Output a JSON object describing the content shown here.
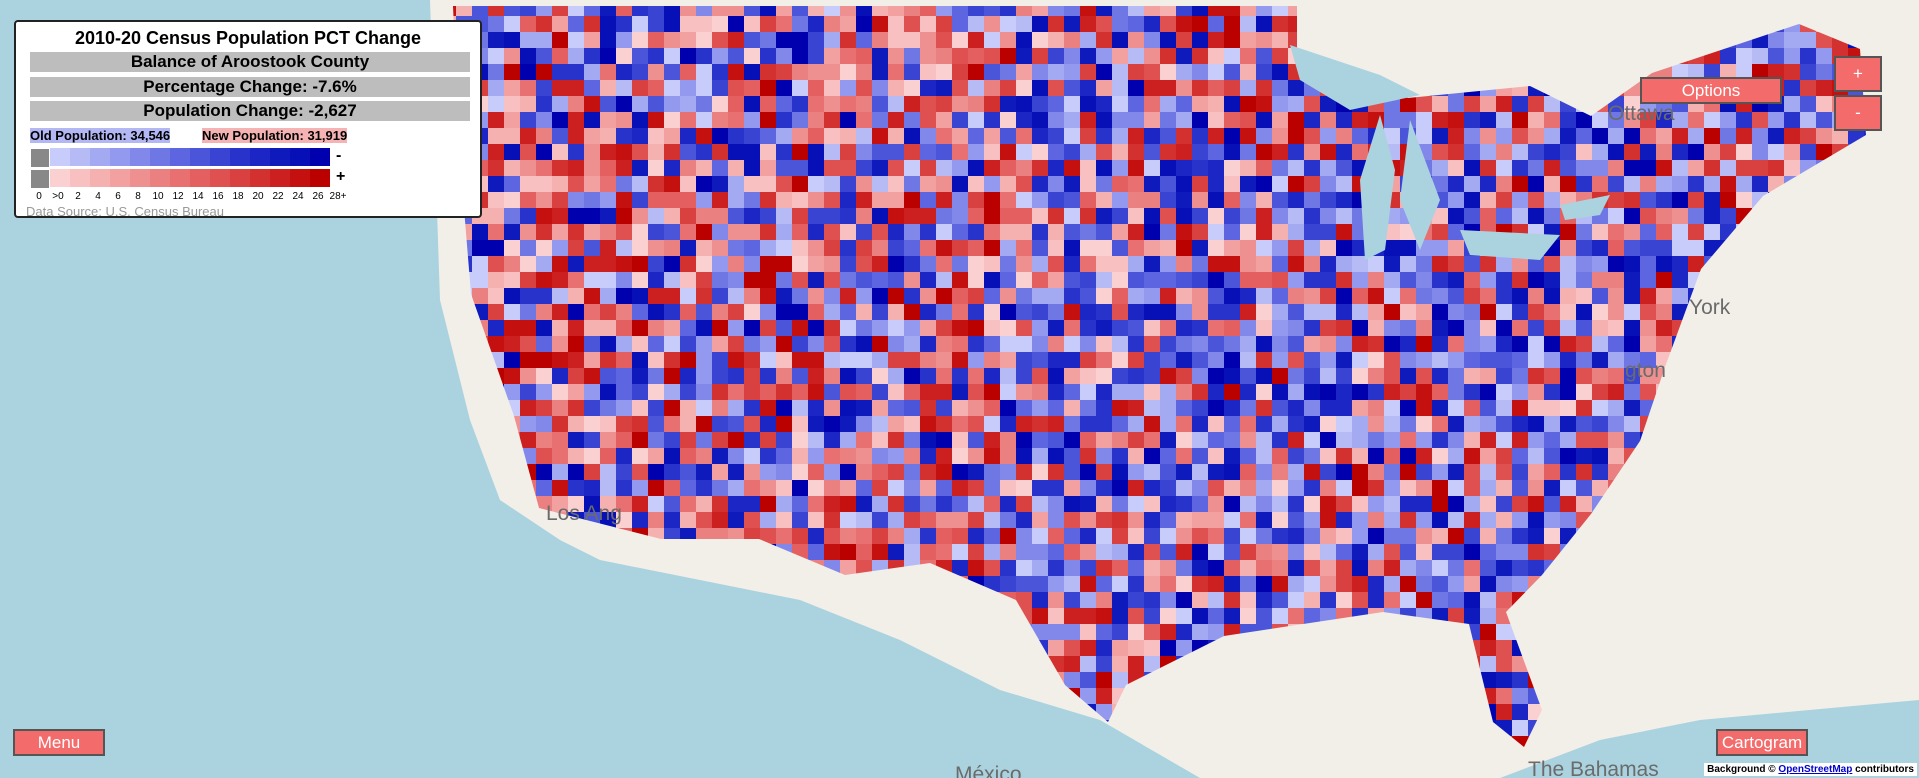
{
  "legend": {
    "title": "2010-20 Census Population PCT Change",
    "area": "Balance of Aroostook County",
    "pct_change": "Percentage Change: -7.6%",
    "pop_change": "Population Change: -2,627",
    "old_population": "Old Population: 34,546",
    "new_population": "New Population: 31,919",
    "minus_sign": "-",
    "plus_sign": "+",
    "scale_labels": [
      "0",
      ">0",
      "2",
      "4",
      "6",
      "8",
      "10",
      "12",
      "14",
      "16",
      "18",
      "20",
      "22",
      "24",
      "26",
      "28+"
    ],
    "source": "Data Source: U.S. Census Bureau"
  },
  "buttons": {
    "options": "Options",
    "zoom_in": "+",
    "zoom_out": "-",
    "menu": "Menu",
    "cartogram": "Cartogram"
  },
  "map_labels": [
    "Ottawa",
    "York",
    "gton",
    "Los Ang",
    "México",
    "The Bahamas"
  ],
  "attribution": {
    "prefix": "Background ©",
    "link": "OpenStreetMap",
    "suffix": "contributors"
  }
}
